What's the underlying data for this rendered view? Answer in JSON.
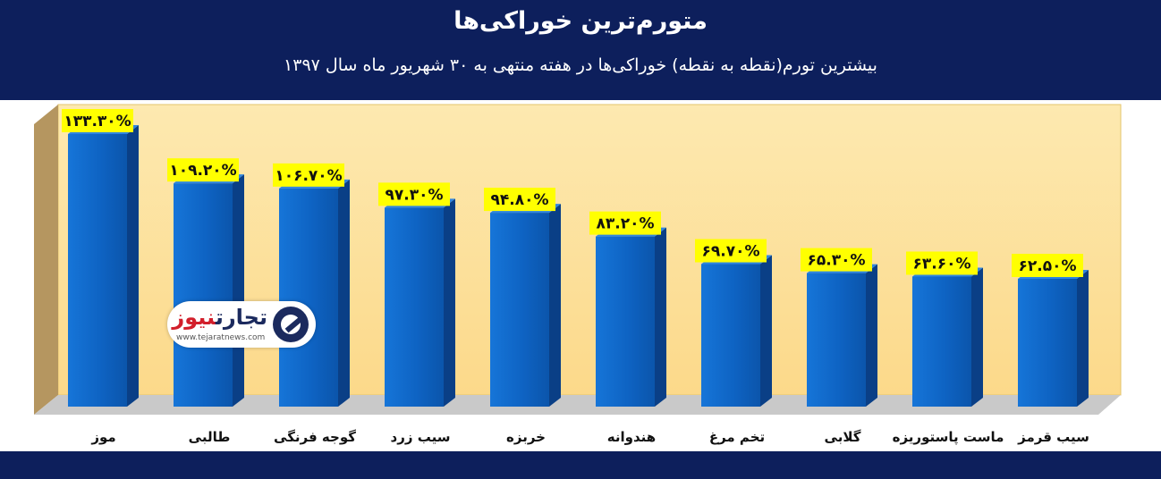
{
  "chart_data": {
    "type": "bar",
    "title": "متورم‌ترین خوراکی‌ها",
    "subtitle": "بیشترین تورم(نقطه به نقطه) خوراکی‌ها در هفته منتهی به ۳۰ شهریور ماه سال ۱۳۹۷",
    "categories": [
      "موز",
      "طالبی",
      "گوجه فرنگی",
      "سیب زرد",
      "خربزه",
      "هندوانه",
      "تخم مرغ",
      "گلابی",
      "ماست پاستوریزه",
      "سیب قرمز"
    ],
    "values": [
      133.3,
      109.2,
      106.7,
      97.3,
      94.8,
      83.2,
      69.7,
      65.3,
      63.6,
      62.5
    ],
    "data_labels": [
      "۱۳۳.۳۰%",
      "۱۰۹.۲۰%",
      "۱۰۶.۷۰%",
      "۹۷.۳۰%",
      "۹۴.۸۰%",
      "۸۳.۲۰%",
      "۶۹.۷۰%",
      "۶۵.۳۰%",
      "۶۳.۶۰%",
      "۶۲.۵۰%"
    ],
    "ylim": [
      0,
      140
    ],
    "grid": false,
    "legend": "none",
    "colors": {
      "bar": "#0e63c3",
      "bar_side": "#0a3f86",
      "label_bg": "#ffff00",
      "plot_back": "#fde7a6",
      "header": "#0d1f5c"
    }
  },
  "logo": {
    "name_dark": "تجارت",
    "name_red": "نیوز",
    "url": "www.tejaratnews.com"
  }
}
